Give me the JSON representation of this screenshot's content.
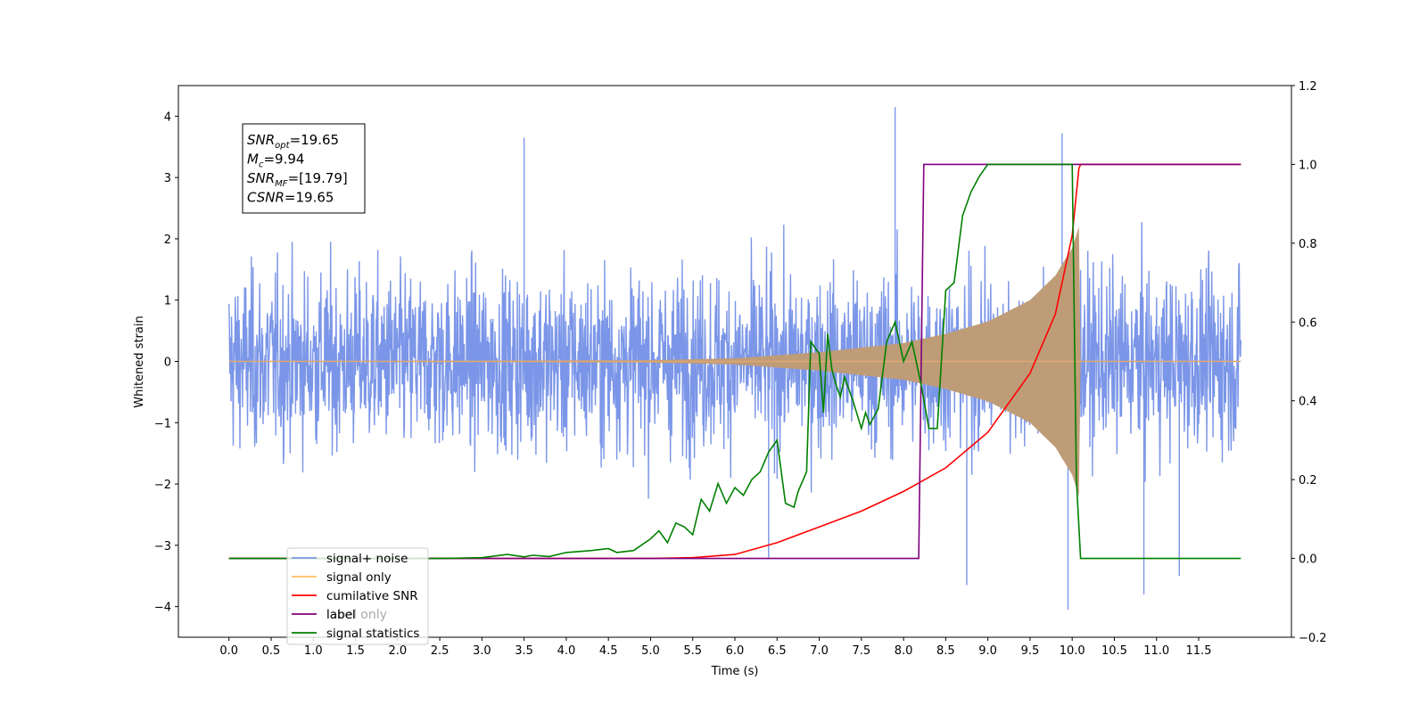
{
  "chart_data": {
    "type": "line",
    "xlabel": "Time (s)",
    "ylabel": "Whitened strain",
    "xlim": [
      -0.6,
      12.6
    ],
    "ylim_left": [
      -4.5,
      4.5
    ],
    "ylim_right": [
      -0.2,
      1.2
    ],
    "x_ticks": [
      "0.0",
      "0.5",
      "1.0",
      "1.5",
      "2.0",
      "2.5",
      "3.0",
      "3.5",
      "4.0",
      "4.5",
      "5.0",
      "5.5",
      "6.0",
      "6.5",
      "7.0",
      "7.5",
      "8.0",
      "8.5",
      "9.0",
      "9.5",
      "10.0",
      "10.5",
      "11.0",
      "11.5"
    ],
    "y_ticks_left": [
      "4",
      "3",
      "2",
      "1",
      "0",
      "−1",
      "−2",
      "−3",
      "−4"
    ],
    "y_ticks_right": [
      "1.2",
      "1.0",
      "0.8",
      "0.6",
      "0.4",
      "0.2",
      "0.0",
      "−0.2"
    ],
    "annotation": {
      "lines": [
        {
          "main": "SNR",
          "sub": "opt",
          "value": "=19.65"
        },
        {
          "main": "M",
          "sub": "c",
          "value": "=9.94"
        },
        {
          "main": "SNR",
          "sub": "MF",
          "value": "=[19.79]"
        },
        {
          "main": "CSNR",
          "sub": "",
          "value": "=19.65"
        }
      ]
    },
    "legend": {
      "placement": "lower-left",
      "entries": [
        {
          "label": "signal+ noise",
          "color": "#7b96e8"
        },
        {
          "label": "signal only",
          "color": "#ffc061"
        },
        {
          "label": "cumilative SNR",
          "color": "#ff0000"
        },
        {
          "label": "label",
          "color": "#800080"
        },
        {
          "label": "signal statistics",
          "color": "#008000"
        }
      ],
      "hidden_text": "label only"
    },
    "series": [
      {
        "name": "signal+ noise",
        "axis": "left",
        "color": "#7b96e8",
        "x_range": [
          0.0,
          12.0
        ],
        "noise_std": 1.0,
        "notable_spikes": [
          {
            "x": 7.9,
            "y": 4.15
          },
          {
            "x": 3.5,
            "y": 3.65
          },
          {
            "x": 9.88,
            "y": 3.72
          },
          {
            "x": 9.95,
            "y": -4.05
          },
          {
            "x": 6.4,
            "y": -3.2
          },
          {
            "x": 8.75,
            "y": -3.65
          },
          {
            "x": 10.85,
            "y": -3.8
          },
          {
            "x": 11.27,
            "y": -3.5
          }
        ]
      },
      {
        "name": "signal only",
        "axis": "left",
        "color": "#ffc061",
        "envelope": {
          "x": [
            0.0,
            5.0,
            6.0,
            7.0,
            8.0,
            8.5,
            9.0,
            9.5,
            9.8,
            10.0,
            10.08,
            10.1,
            12.0
          ],
          "amplitude": [
            0.0,
            0.02,
            0.05,
            0.15,
            0.3,
            0.45,
            0.65,
            1.0,
            1.4,
            1.85,
            2.2,
            0.0,
            0.0
          ]
        }
      },
      {
        "name": "cumilative SNR",
        "axis": "right",
        "color": "#ff0000",
        "x": [
          0.0,
          5.0,
          5.5,
          6.0,
          6.5,
          7.0,
          7.5,
          8.0,
          8.5,
          9.0,
          9.5,
          9.8,
          10.0,
          10.08,
          10.1,
          12.0
        ],
        "values": [
          0.0,
          0.0,
          0.002,
          0.01,
          0.04,
          0.08,
          0.12,
          0.17,
          0.23,
          0.32,
          0.47,
          0.62,
          0.82,
          0.99,
          1.0,
          1.0
        ]
      },
      {
        "name": "label",
        "axis": "right",
        "color": "#800080",
        "x": [
          0.0,
          8.18,
          8.24,
          10.05,
          10.08,
          10.1,
          12.0
        ],
        "values": [
          0.0,
          0.0,
          1.0,
          1.0,
          1.0,
          1.0,
          1.0
        ]
      },
      {
        "name": "signal statistics",
        "axis": "right",
        "color": "#008000",
        "x": [
          0.0,
          2.5,
          3.0,
          3.3,
          3.5,
          3.6,
          3.8,
          4.0,
          4.3,
          4.5,
          4.6,
          4.8,
          5.0,
          5.1,
          5.2,
          5.3,
          5.4,
          5.5,
          5.6,
          5.7,
          5.8,
          5.9,
          6.0,
          6.1,
          6.2,
          6.3,
          6.4,
          6.5,
          6.6,
          6.7,
          6.75,
          6.85,
          6.9,
          7.0,
          7.05,
          7.1,
          7.15,
          7.2,
          7.25,
          7.3,
          7.4,
          7.5,
          7.55,
          7.6,
          7.7,
          7.8,
          7.9,
          8.0,
          8.1,
          8.2,
          8.3,
          8.4,
          8.5,
          8.6,
          8.7,
          8.8,
          8.9,
          9.0,
          9.5,
          10.0,
          10.05,
          10.1,
          10.15,
          12.0
        ],
        "values": [
          0.0,
          0.0,
          0.002,
          0.01,
          0.004,
          0.008,
          0.005,
          0.015,
          0.02,
          0.025,
          0.015,
          0.02,
          0.05,
          0.07,
          0.04,
          0.09,
          0.08,
          0.06,
          0.15,
          0.12,
          0.19,
          0.14,
          0.18,
          0.16,
          0.2,
          0.22,
          0.27,
          0.3,
          0.14,
          0.13,
          0.17,
          0.22,
          0.55,
          0.52,
          0.37,
          0.57,
          0.48,
          0.44,
          0.41,
          0.46,
          0.4,
          0.33,
          0.37,
          0.34,
          0.38,
          0.55,
          0.6,
          0.5,
          0.55,
          0.45,
          0.33,
          0.33,
          0.68,
          0.7,
          0.87,
          0.93,
          0.97,
          1.0,
          1.0,
          1.0,
          0.2,
          0.0,
          0.0,
          0.0
        ]
      }
    ]
  }
}
